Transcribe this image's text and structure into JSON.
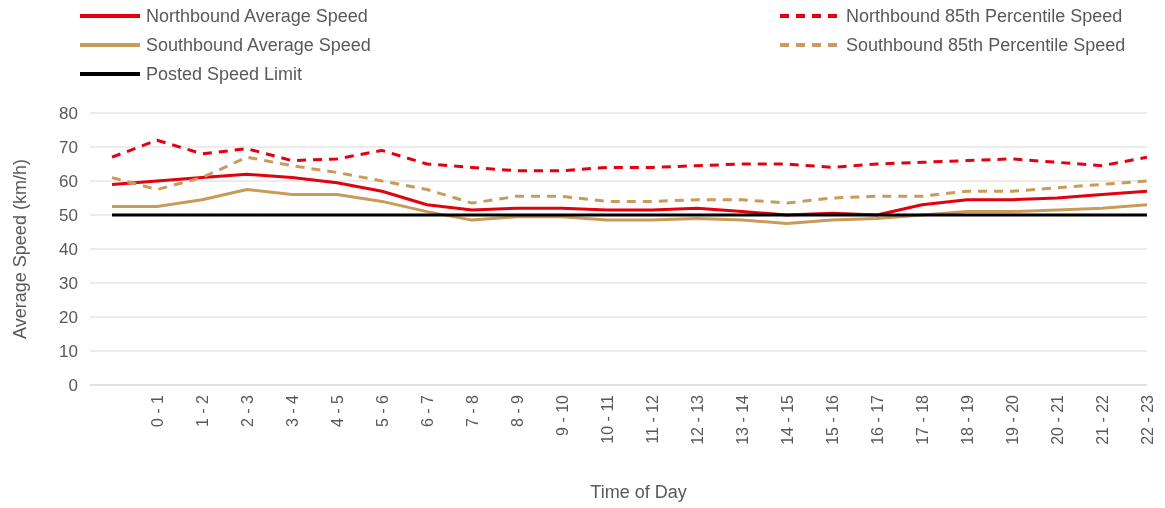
{
  "chart_data": {
    "type": "line",
    "xlabel": "Time of Day",
    "ylabel": "Average Speed (km/h)",
    "categories": [
      null,
      "0 - 1",
      "1 - 2",
      "2 - 3",
      "3 - 4",
      "4 - 5",
      "5 - 6",
      "6 - 7",
      "7 - 8",
      "8 - 9",
      "9 - 10",
      "10 - 11",
      "11 - 12",
      "12 - 13",
      "13 - 14",
      "14 - 15",
      "15 - 16",
      "16 - 17",
      "17 - 18",
      "18 - 19",
      "19 - 20",
      "20 - 21",
      "21 - 22",
      "22 - 23"
    ],
    "ylim": [
      0,
      80
    ],
    "yticks": [
      0,
      10,
      20,
      30,
      40,
      50,
      60,
      70,
      80
    ],
    "grid": "y",
    "legend": "top",
    "marker": "none",
    "series": [
      {
        "name": "Northbound Average Speed",
        "color": "#e3000f",
        "line_style": "solid",
        "values": [
          59,
          60,
          61,
          62,
          61,
          59.5,
          57,
          53,
          51.5,
          52,
          52,
          51.5,
          51.5,
          52,
          51,
          50,
          50.5,
          50,
          53,
          54.5,
          54.5,
          55,
          56,
          57
        ]
      },
      {
        "name": "Northbound 85th Percentile Speed",
        "color": "#e3000f",
        "line_style": "dashed",
        "values": [
          67,
          72,
          68,
          69.5,
          66,
          66.5,
          69,
          65,
          64,
          63,
          63,
          64,
          64,
          64.5,
          65,
          65,
          64,
          65,
          65.5,
          66,
          66.5,
          65.5,
          64.5,
          67
        ]
      },
      {
        "name": "Southbound Average Speed",
        "color": "#c89b5a",
        "line_style": "solid",
        "values": [
          52.5,
          52.5,
          54.5,
          57.5,
          56,
          56,
          54,
          51,
          48.5,
          49.5,
          49.5,
          48.5,
          48.5,
          49,
          48.5,
          47.5,
          48.5,
          49,
          50,
          51,
          51,
          51.5,
          52,
          53
        ]
      },
      {
        "name": "Southbound 85th Percentile Speed",
        "color": "#c89b5a",
        "line_style": "dashed",
        "values": [
          61,
          57.5,
          61,
          67,
          64.5,
          62.5,
          60,
          57.5,
          53.5,
          55.5,
          55.5,
          54,
          54,
          54.5,
          54.5,
          53.5,
          55,
          55.5,
          55.5,
          57,
          57,
          58,
          59,
          60
        ]
      },
      {
        "name": "Posted Speed Limit",
        "color": "#000000",
        "line_style": "solid",
        "values": [
          50,
          50,
          50,
          50,
          50,
          50,
          50,
          50,
          50,
          50,
          50,
          50,
          50,
          50,
          50,
          50,
          50,
          50,
          50,
          50,
          50,
          50,
          50,
          50
        ]
      }
    ]
  }
}
